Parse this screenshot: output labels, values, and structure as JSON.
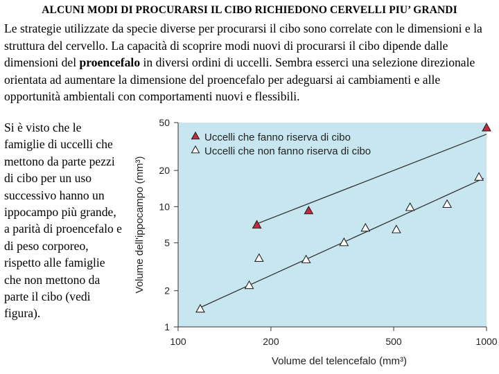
{
  "slide": {
    "title": "ALCUNI MODI DI PROCURARSI IL CIBO RICHIEDONO CERVELLI PIU’ GRANDI",
    "intro_before": "Le strategie utilizzate da specie diverse per procurarsi il cibo sono correlate con le dimensioni e la struttura del cervello. La capacità di scoprire modi nuovi di procurarsi il cibo dipende dalle dimensioni del ",
    "intro_bold": "proencefalo",
    "intro_after": " in diversi ordini di uccelli. Sembra esserci una selezione direzionale orientata ad aumentare la dimensione del proencefalo per adeguarsi ai cambiamenti e alle opportunità ambientali con comportamenti nuovi e flessibili.",
    "side_text": "Si è visto che le famiglie di uccelli che mettono da parte pezzi di cibo per un uso successivo hanno un ippocampo più grande, a parità di proencefalo e di peso corporeo, rispetto alle famiglie che non mettono da parte il cibo (vedi figura)."
  },
  "chart_data": {
    "type": "scatter",
    "xlabel": "Volume del telencefalo (mm³)",
    "ylabel": "Volume dell'ippocampo (mm³)",
    "xscale": "log",
    "yscale": "log",
    "xlim": [
      100,
      1000
    ],
    "ylim": [
      1,
      50
    ],
    "xticks": [
      100,
      200,
      500,
      1000
    ],
    "yticks": [
      1,
      2,
      5,
      10,
      20,
      50
    ],
    "grid": false,
    "legend_position": "top-left",
    "background": "#c7e6f0",
    "series": [
      {
        "name": "Uccelli che fanno riserva di cibo",
        "marker": "filled-triangle",
        "color": "#c8283c",
        "points": [
          [
            180,
            7.0
          ],
          [
            265,
            9.2
          ],
          [
            1000,
            45.0
          ]
        ],
        "fit": [
          [
            180,
            7.2
          ],
          [
            1000,
            40.0
          ]
        ]
      },
      {
        "name": "Uccelli che non fanno riserva di cibo",
        "marker": "open-triangle",
        "color": "#ffffff",
        "points": [
          [
            118,
            1.4
          ],
          [
            170,
            2.2
          ],
          [
            183,
            3.7
          ],
          [
            260,
            3.6
          ],
          [
            345,
            5.0
          ],
          [
            405,
            6.6
          ],
          [
            510,
            6.4
          ],
          [
            565,
            9.8
          ],
          [
            745,
            10.4
          ],
          [
            945,
            17.5
          ]
        ],
        "fit": [
          [
            118,
            1.45
          ],
          [
            980,
            17.2
          ]
        ]
      }
    ]
  }
}
